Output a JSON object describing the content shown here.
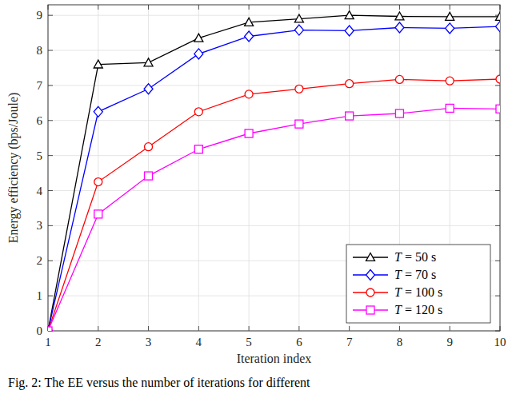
{
  "chart_data": {
    "type": "line",
    "caption": "Fig. 2: The EE versus the number of iterations for different",
    "x_label": "Iteration index",
    "y_label": "Energy efficiency (bps/Joule)",
    "x": [
      1,
      2,
      3,
      4,
      5,
      6,
      7,
      8,
      9,
      10
    ],
    "xlim": [
      1,
      10
    ],
    "xticks": [
      1,
      2,
      3,
      4,
      5,
      6,
      7,
      8,
      9,
      10
    ],
    "ylim": [
      0,
      9.3
    ],
    "yticks": [
      0,
      1,
      2,
      3,
      4,
      5,
      6,
      7,
      8,
      9
    ],
    "grid": true,
    "legend": "lower right",
    "series": [
      {
        "name": "T = 50 s",
        "color": "#000000",
        "marker": "triangle",
        "values": [
          0,
          7.6,
          7.65,
          8.35,
          8.8,
          8.9,
          9.0,
          8.97,
          8.96,
          8.96
        ]
      },
      {
        "name": "T = 70 s",
        "color": "#0000ff",
        "marker": "diamond",
        "values": [
          0,
          6.25,
          6.9,
          7.9,
          8.4,
          8.58,
          8.56,
          8.65,
          8.63,
          8.68
        ]
      },
      {
        "name": "T = 100 s",
        "color": "#ff0000",
        "marker": "circle",
        "values": [
          0,
          4.25,
          5.25,
          6.25,
          6.75,
          6.9,
          7.05,
          7.17,
          7.13,
          7.18
        ]
      },
      {
        "name": "T = 120 s",
        "color": "#ff00ff",
        "marker": "square",
        "values": [
          0,
          3.33,
          4.42,
          5.18,
          5.63,
          5.9,
          6.13,
          6.2,
          6.35,
          6.33
        ]
      }
    ]
  }
}
